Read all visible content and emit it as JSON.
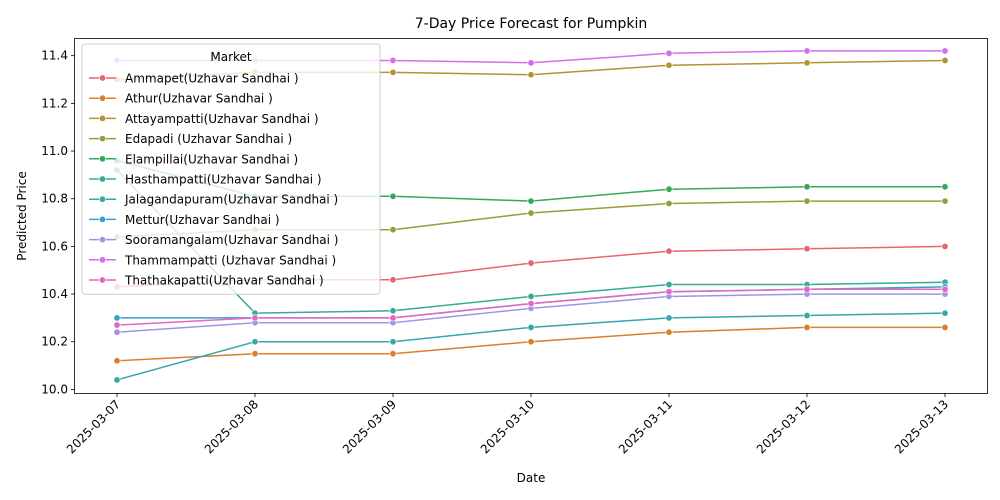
{
  "chart_data": {
    "type": "line",
    "title": "7-Day Price Forecast for Pumpkin",
    "xlabel": "Date",
    "ylabel": "Predicted Price",
    "ylim": [
      9.985,
      11.47
    ],
    "yticks": [
      "10.0",
      "10.2",
      "10.4",
      "10.6",
      "10.8",
      "11.0",
      "11.2",
      "11.4"
    ],
    "grid": false,
    "legend_title": "Market",
    "legend_placement": "top-left",
    "categories": [
      "2025-03-07",
      "2025-03-08",
      "2025-03-09",
      "2025-03-10",
      "2025-03-11",
      "2025-03-12",
      "2025-03-13"
    ],
    "series": [
      {
        "name": "Ammapet(Uzhavar Sandhai )",
        "color": "#e8646f",
        "values": [
          10.43,
          10.46,
          10.46,
          10.53,
          10.58,
          10.59,
          10.6
        ]
      },
      {
        "name": "Athur(Uzhavar Sandhai )",
        "color": "#db7f2f",
        "values": [
          10.12,
          10.15,
          10.15,
          10.2,
          10.24,
          10.26,
          10.26
        ]
      },
      {
        "name": "Attayampatti(Uzhavar Sandhai )",
        "color": "#b39332",
        "values": [
          11.3,
          11.33,
          11.33,
          11.32,
          11.36,
          11.37,
          11.38
        ]
      },
      {
        "name": "Edapadi (Uzhavar Sandhai )",
        "color": "#94a035",
        "values": [
          10.64,
          10.67,
          10.67,
          10.74,
          10.78,
          10.79,
          10.79
        ]
      },
      {
        "name": "Elampillai(Uzhavar Sandhai )",
        "color": "#33aa55",
        "values": [
          10.96,
          10.81,
          10.81,
          10.79,
          10.84,
          10.85,
          10.85
        ]
      },
      {
        "name": "Hasthampatti(Uzhavar Sandhai )",
        "color": "#35ad94",
        "values": [
          10.92,
          10.32,
          10.33,
          10.39,
          10.44,
          10.44,
          10.45
        ]
      },
      {
        "name": "Jalagandapuram(Uzhavar Sandhai )",
        "color": "#37a6ad",
        "values": [
          10.04,
          10.2,
          10.2,
          10.26,
          10.3,
          10.31,
          10.32
        ]
      },
      {
        "name": "Mettur(Uzhavar Sandhai )",
        "color": "#38a0d1",
        "values": [
          10.3,
          10.3,
          10.3,
          10.36,
          10.41,
          10.42,
          10.43
        ]
      },
      {
        "name": "Sooramangalam(Uzhavar Sandhai )",
        "color": "#9c96e8",
        "values": [
          10.24,
          10.28,
          10.28,
          10.34,
          10.39,
          10.4,
          10.4
        ]
      },
      {
        "name": "Thammampatti (Uzhavar Sandhai )",
        "color": "#d270e6",
        "values": [
          11.38,
          11.38,
          11.38,
          11.37,
          11.41,
          11.42,
          11.42
        ]
      },
      {
        "name": "Thathakapatti(Uzhavar Sandhai )",
        "color": "#e567c3",
        "values": [
          10.27,
          10.3,
          10.3,
          10.36,
          10.41,
          10.42,
          10.42
        ]
      }
    ]
  }
}
